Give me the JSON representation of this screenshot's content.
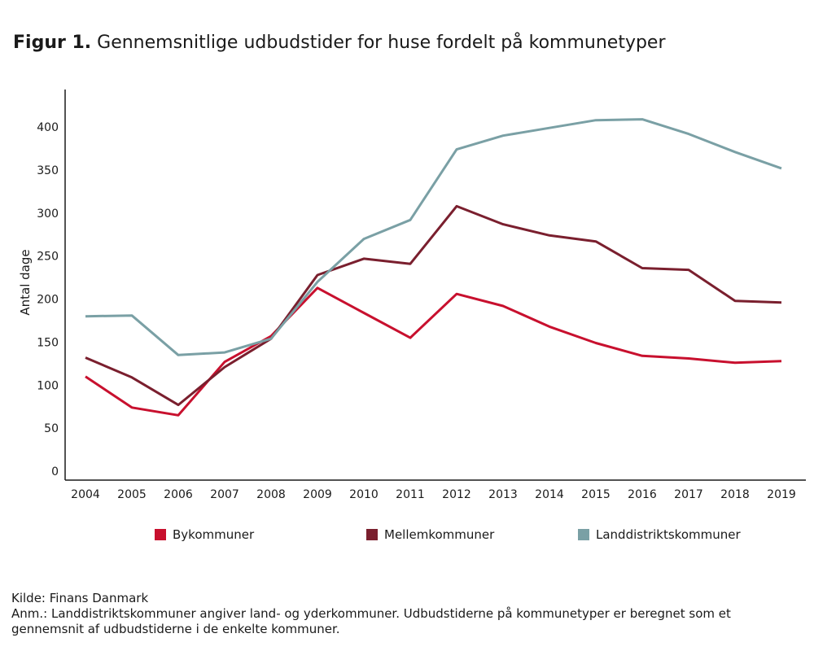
{
  "title": {
    "prefix": "Figur 1.",
    "text": "Gennemsnitlige udbudstider for huse fordelt på kommunetyper"
  },
  "chart_data": {
    "type": "line",
    "ylabel": "Antal dage",
    "xlabel": "",
    "ylim": [
      0,
      420
    ],
    "yticks": [
      0,
      50,
      100,
      150,
      200,
      250,
      300,
      350,
      400
    ],
    "x": [
      "2004",
      "2005",
      "2006",
      "2007",
      "2008",
      "2009",
      "2010",
      "2011",
      "2012",
      "2013",
      "2014",
      "2015",
      "2016",
      "2017",
      "2018",
      "2019"
    ],
    "grid": false,
    "legend_position": "bottom",
    "series": [
      {
        "name": "Bykommuner",
        "color": "#c8102e",
        "values": [
          110,
          74,
          65,
          127,
          157,
          213,
          184,
          155,
          206,
          192,
          168,
          149,
          134,
          131,
          126,
          128
        ]
      },
      {
        "name": "Mellemkommuner",
        "color": "#7a1f2e",
        "values": [
          132,
          109,
          77,
          121,
          154,
          228,
          247,
          241,
          308,
          287,
          274,
          267,
          236,
          234,
          198,
          196
        ]
      },
      {
        "name": "Landdistriktskommuner",
        "color": "#7aa0a5",
        "values": [
          180,
          181,
          135,
          138,
          154,
          220,
          270,
          292,
          374,
          390,
          399,
          408,
          409,
          392,
          371,
          352
        ]
      }
    ]
  },
  "notes": {
    "source": "Kilde: Finans Danmark",
    "remark_line1": "Anm.: Landdistriktskommuner angiver land- og yderkommuner. Udbudstiderne på kommunetyper er beregnet som et",
    "remark_line2": "gennemsnit af udbudstiderne i de enkelte kommuner."
  }
}
